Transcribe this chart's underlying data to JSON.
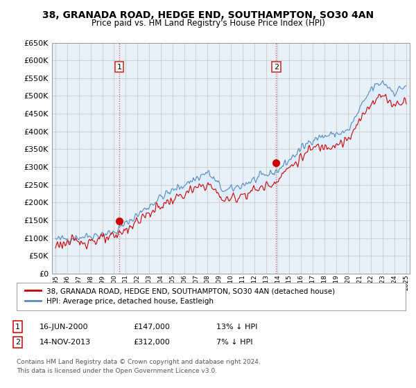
{
  "title": "38, GRANADA ROAD, HEDGE END, SOUTHAMPTON, SO30 4AN",
  "subtitle": "Price paid vs. HM Land Registry's House Price Index (HPI)",
  "ylim": [
    0,
    650000
  ],
  "yticks": [
    0,
    50000,
    100000,
    150000,
    200000,
    250000,
    300000,
    350000,
    400000,
    450000,
    500000,
    550000,
    600000,
    650000
  ],
  "background_color": "#ffffff",
  "chart_bg_color": "#e8f0f8",
  "grid_color": "#cccccc",
  "legend_label_red": "38, GRANADA ROAD, HEDGE END, SOUTHAMPTON, SO30 4AN (detached house)",
  "legend_label_blue": "HPI: Average price, detached house, Eastleigh",
  "annotation1_label": "1",
  "annotation1_date": "16-JUN-2000",
  "annotation1_price": "£147,000",
  "annotation1_hpi": "13% ↓ HPI",
  "annotation2_label": "2",
  "annotation2_date": "14-NOV-2013",
  "annotation2_price": "£312,000",
  "annotation2_hpi": "7% ↓ HPI",
  "footer": "Contains HM Land Registry data © Crown copyright and database right 2024.\nThis data is licensed under the Open Government Licence v3.0.",
  "red_color": "#cc0000",
  "blue_color": "#5588bb",
  "fill_color": "#ddeeff",
  "ann_vline_color": "#cc3333",
  "sale1_x": 2000.46,
  "sale1_y": 147000,
  "sale2_x": 2013.87,
  "sale2_y": 312000,
  "xlim_left": 1994.7,
  "xlim_right": 2025.3
}
